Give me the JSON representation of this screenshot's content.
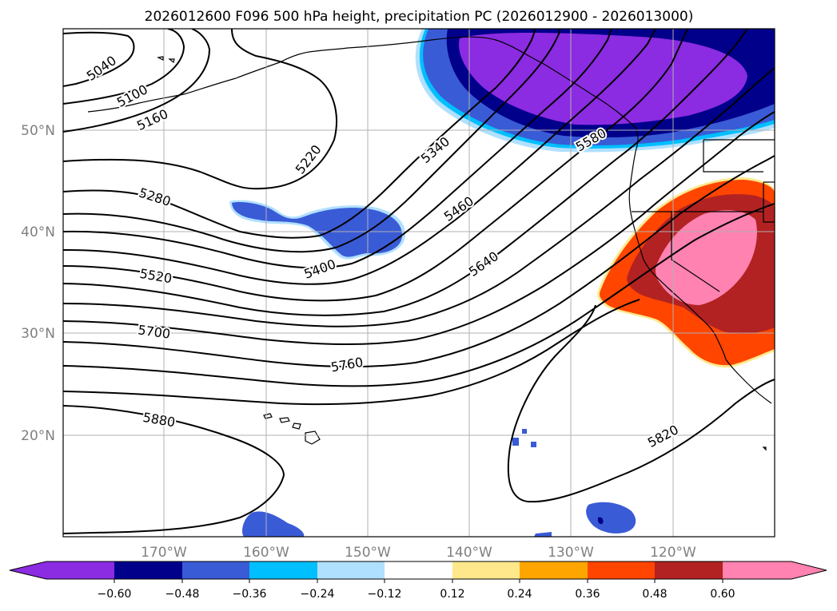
{
  "title": "2026012600 F096 500 hPa height, precipitation PC (2026012900 - 2026013000)",
  "map": {
    "lat_labels": [
      "50°N",
      "40°N",
      "30°N",
      "20°N"
    ],
    "lon_labels": [
      "170°W",
      "160°W",
      "150°W",
      "140°W",
      "130°W",
      "120°W"
    ],
    "contour_labels": [
      "5040",
      "5100",
      "5160",
      "5220",
      "5280",
      "5340",
      "5400",
      "5460",
      "5520",
      "5580",
      "5640",
      "5700",
      "5760",
      "5820",
      "5880"
    ]
  },
  "colorbar": {
    "ticks": [
      "−0.60",
      "−0.48",
      "−0.36",
      "−0.24",
      "−0.12",
      "0.12",
      "0.24",
      "0.36",
      "0.48",
      "0.60"
    ],
    "colors": [
      "#8b2be2",
      "#00008b",
      "#3a5bd6",
      "#00bfff",
      "#b0e0ff",
      "#ffffff",
      "#ffe88c",
      "#ffa500",
      "#ff4500",
      "#b22222",
      "#ff82b0"
    ]
  },
  "colors": {
    "grid": "#b0b0b0",
    "contour": "#000000",
    "axis_label": "#808080"
  }
}
